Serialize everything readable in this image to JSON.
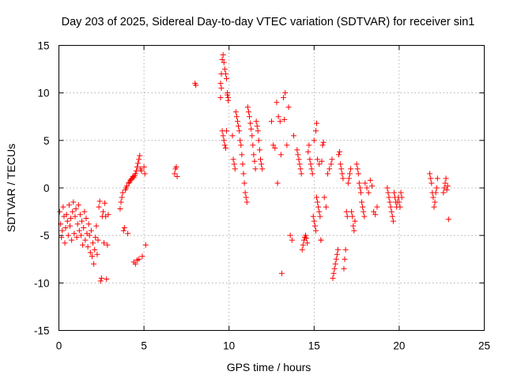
{
  "chart_data": {
    "type": "scatter",
    "title": "Day 203 of 2025, Sidereal Day-to-day VTEC variation (SDTVAR) for receiver sin1",
    "xlabel": "GPS time / hours",
    "ylabel": "SDTVAR / TECUs",
    "xlim": [
      0,
      25
    ],
    "ylim": [
      -15,
      15
    ],
    "xticks": [
      0,
      5,
      10,
      15,
      20,
      25
    ],
    "yticks": [
      -15,
      -10,
      -5,
      0,
      5,
      10,
      15
    ],
    "xtick_labels": [
      "0",
      "5",
      "10",
      "15",
      "20",
      "25"
    ],
    "ytick_labels": [
      "-15",
      "-10",
      "-5",
      "0",
      "5",
      "10",
      "15"
    ],
    "grid": true,
    "marker": "plus",
    "color": "#ff0000",
    "series": [
      {
        "name": "SDTVAR",
        "points": [
          [
            0.05,
            -2.5
          ],
          [
            0.1,
            -3.8
          ],
          [
            0.15,
            -5.2
          ],
          [
            0.2,
            -4.5
          ],
          [
            0.25,
            -2.0
          ],
          [
            0.3,
            -3.0
          ],
          [
            0.35,
            -5.8
          ],
          [
            0.4,
            -4.2
          ],
          [
            0.45,
            -2.8
          ],
          [
            0.5,
            -3.5
          ],
          [
            0.55,
            -5.0
          ],
          [
            0.6,
            -1.8
          ],
          [
            0.65,
            -4.0
          ],
          [
            0.7,
            -3.2
          ],
          [
            0.75,
            -5.5
          ],
          [
            0.8,
            -2.5
          ],
          [
            0.85,
            -1.5
          ],
          [
            0.9,
            -4.8
          ],
          [
            0.95,
            -3.0
          ],
          [
            1.0,
            -2.2
          ],
          [
            1.05,
            -5.2
          ],
          [
            1.1,
            -3.8
          ],
          [
            1.15,
            -1.8
          ],
          [
            1.2,
            -4.5
          ],
          [
            1.25,
            -2.8
          ],
          [
            1.3,
            -5.0
          ],
          [
            1.35,
            -3.5
          ],
          [
            1.4,
            -6.0
          ],
          [
            1.45,
            -4.2
          ],
          [
            1.5,
            -2.5
          ],
          [
            1.55,
            -5.5
          ],
          [
            1.6,
            -3.2
          ],
          [
            1.65,
            -4.8
          ],
          [
            1.7,
            -6.2
          ],
          [
            1.75,
            -3.8
          ],
          [
            1.8,
            -5.0
          ],
          [
            1.85,
            -6.8
          ],
          [
            1.9,
            -4.5
          ],
          [
            1.95,
            -7.2
          ],
          [
            2.0,
            -5.8
          ],
          [
            2.05,
            -8.0
          ],
          [
            2.1,
            -6.5
          ],
          [
            2.15,
            -5.2
          ],
          [
            2.2,
            -4.0
          ],
          [
            2.25,
            -7.0
          ],
          [
            2.3,
            -5.5
          ],
          [
            2.35,
            -2.0
          ],
          [
            2.4,
            -1.4
          ],
          [
            2.45,
            -9.8
          ],
          [
            2.5,
            -9.5
          ],
          [
            2.55,
            -3.0
          ],
          [
            2.6,
            -2.5
          ],
          [
            2.65,
            -5.8
          ],
          [
            2.7,
            -1.6
          ],
          [
            2.75,
            -3.0
          ],
          [
            2.8,
            -9.6
          ],
          [
            2.85,
            -6.0
          ],
          [
            2.9,
            -2.8
          ],
          [
            3.6,
            -2.2
          ],
          [
            3.65,
            -1.5
          ],
          [
            3.7,
            -1.0
          ],
          [
            3.75,
            -0.5
          ],
          [
            3.8,
            -4.5
          ],
          [
            3.85,
            -4.2
          ],
          [
            3.9,
            -0.2
          ],
          [
            3.95,
            0.0
          ],
          [
            4.0,
            0.2
          ],
          [
            4.05,
            -4.8
          ],
          [
            4.1,
            0.5
          ],
          [
            4.15,
            0.6
          ],
          [
            4.2,
            0.8
          ],
          [
            4.25,
            0.9
          ],
          [
            4.3,
            1.0
          ],
          [
            4.35,
            1.2
          ],
          [
            4.4,
            1.1
          ],
          [
            4.45,
            1.3
          ],
          [
            4.5,
            1.5
          ],
          [
            4.55,
            1.8
          ],
          [
            4.6,
            2.2
          ],
          [
            4.65,
            2.6
          ],
          [
            4.7,
            3.0
          ],
          [
            4.75,
            3.4
          ],
          [
            4.8,
            2.0
          ],
          [
            4.85,
            1.8
          ],
          [
            4.4,
            -7.8
          ],
          [
            4.5,
            -8.0
          ],
          [
            4.6,
            -7.6
          ],
          [
            4.7,
            -7.5
          ],
          [
            4.9,
            -7.2
          ],
          [
            5.0,
            2.2
          ],
          [
            5.05,
            1.5
          ],
          [
            5.1,
            -6.0
          ],
          [
            6.8,
            1.5
          ],
          [
            6.85,
            2.0
          ],
          [
            6.9,
            2.2
          ],
          [
            6.95,
            1.2
          ],
          [
            8.0,
            11.0
          ],
          [
            8.05,
            10.8
          ],
          [
            9.5,
            11.0
          ],
          [
            9.55,
            12.0
          ],
          [
            9.6,
            13.5
          ],
          [
            9.65,
            14.0
          ],
          [
            9.7,
            13.2
          ],
          [
            9.75,
            12.5
          ],
          [
            9.8,
            12.0
          ],
          [
            9.85,
            11.5
          ],
          [
            9.9,
            10.0
          ],
          [
            9.95,
            9.5
          ],
          [
            9.5,
            9.5
          ],
          [
            9.55,
            10.5
          ],
          [
            9.6,
            6.0
          ],
          [
            9.65,
            5.5
          ],
          [
            9.7,
            5.0
          ],
          [
            9.75,
            4.5
          ],
          [
            9.8,
            4.2
          ],
          [
            9.85,
            6.0
          ],
          [
            9.9,
            9.8
          ],
          [
            9.95,
            9.2
          ],
          [
            10.2,
            5.5
          ],
          [
            10.25,
            3.0
          ],
          [
            10.3,
            2.5
          ],
          [
            10.35,
            2.0
          ],
          [
            10.4,
            8.0
          ],
          [
            10.45,
            7.5
          ],
          [
            10.5,
            7.0
          ],
          [
            10.55,
            6.5
          ],
          [
            10.6,
            6.0
          ],
          [
            10.65,
            5.0
          ],
          [
            10.7,
            4.5
          ],
          [
            10.75,
            3.5
          ],
          [
            10.8,
            2.5
          ],
          [
            10.85,
            1.5
          ],
          [
            10.9,
            0.5
          ],
          [
            10.95,
            -0.5
          ],
          [
            11.0,
            -1.0
          ],
          [
            11.05,
            -1.5
          ],
          [
            11.1,
            8.5
          ],
          [
            11.15,
            8.0
          ],
          [
            11.2,
            7.5
          ],
          [
            11.25,
            6.8
          ],
          [
            11.3,
            6.2
          ],
          [
            11.35,
            5.5
          ],
          [
            11.4,
            4.5
          ],
          [
            11.45,
            3.5
          ],
          [
            11.5,
            2.8
          ],
          [
            11.55,
            2.0
          ],
          [
            11.6,
            7.0
          ],
          [
            11.65,
            6.5
          ],
          [
            11.7,
            6.0
          ],
          [
            11.75,
            5.0
          ],
          [
            11.8,
            4.0
          ],
          [
            11.85,
            3.0
          ],
          [
            11.9,
            2.5
          ],
          [
            11.95,
            2.0
          ],
          [
            12.5,
            7.0
          ],
          [
            12.6,
            4.5
          ],
          [
            12.7,
            4.2
          ],
          [
            12.8,
            9.0
          ],
          [
            12.85,
            0.5
          ],
          [
            12.9,
            7.5
          ],
          [
            13.0,
            7.0
          ],
          [
            13.05,
            3.5
          ],
          [
            13.1,
            -9.0
          ],
          [
            13.2,
            9.5
          ],
          [
            13.25,
            7.2
          ],
          [
            13.3,
            10.0
          ],
          [
            13.4,
            4.5
          ],
          [
            13.5,
            8.5
          ],
          [
            13.6,
            -5.0
          ],
          [
            13.7,
            -5.5
          ],
          [
            13.8,
            5.5
          ],
          [
            14.0,
            4.0
          ],
          [
            14.05,
            3.5
          ],
          [
            14.1,
            3.0
          ],
          [
            14.15,
            2.5
          ],
          [
            14.2,
            2.0
          ],
          [
            14.25,
            1.5
          ],
          [
            14.3,
            -6.5
          ],
          [
            14.35,
            -6.0
          ],
          [
            14.4,
            -5.5
          ],
          [
            14.45,
            -5.2
          ],
          [
            14.5,
            -5.0
          ],
          [
            14.55,
            -5.3
          ],
          [
            14.6,
            -5.8
          ],
          [
            14.65,
            3.8
          ],
          [
            14.7,
            4.5
          ],
          [
            14.75,
            3.0
          ],
          [
            14.8,
            2.5
          ],
          [
            14.85,
            2.0
          ],
          [
            14.9,
            1.5
          ],
          [
            14.95,
            -3.0
          ],
          [
            15.0,
            -3.5
          ],
          [
            15.05,
            -4.0
          ],
          [
            15.1,
            -4.5
          ],
          [
            15.15,
            -1.0
          ],
          [
            15.2,
            -1.5
          ],
          [
            15.25,
            -2.0
          ],
          [
            15.3,
            -2.5
          ],
          [
            15.35,
            -3.0
          ],
          [
            15.4,
            -5.5
          ],
          [
            15.45,
            2.8
          ],
          [
            15.0,
            5.0
          ],
          [
            15.1,
            6.0
          ],
          [
            15.15,
            6.8
          ],
          [
            15.2,
            3.0
          ],
          [
            15.3,
            2.5
          ],
          [
            15.4,
            -5.5
          ],
          [
            15.5,
            4.5
          ],
          [
            15.55,
            4.8
          ],
          [
            15.6,
            -1.0
          ],
          [
            15.7,
            -2.0
          ],
          [
            15.8,
            1.5
          ],
          [
            15.9,
            2.0
          ],
          [
            16.0,
            2.5
          ],
          [
            16.05,
            3.0
          ],
          [
            16.1,
            -9.5
          ],
          [
            16.15,
            -9.0
          ],
          [
            16.2,
            -8.5
          ],
          [
            16.25,
            -8.0
          ],
          [
            16.3,
            -7.5
          ],
          [
            16.35,
            -7.0
          ],
          [
            16.4,
            -6.5
          ],
          [
            16.45,
            3.5
          ],
          [
            16.5,
            3.8
          ],
          [
            16.55,
            2.5
          ],
          [
            16.6,
            2.0
          ],
          [
            16.65,
            1.5
          ],
          [
            16.7,
            1.0
          ],
          [
            16.75,
            -8.5
          ],
          [
            16.8,
            -7.5
          ],
          [
            16.85,
            -6.5
          ],
          [
            16.9,
            -2.5
          ],
          [
            16.95,
            -3.0
          ],
          [
            17.0,
            0.5
          ],
          [
            17.05,
            1.0
          ],
          [
            17.1,
            1.5
          ],
          [
            17.15,
            2.0
          ],
          [
            17.2,
            -2.5
          ],
          [
            17.25,
            -3.0
          ],
          [
            17.3,
            -4.0
          ],
          [
            17.35,
            -4.5
          ],
          [
            17.4,
            -3.5
          ],
          [
            17.5,
            2.5
          ],
          [
            17.55,
            2.0
          ],
          [
            17.6,
            1.5
          ],
          [
            17.65,
            0.5
          ],
          [
            17.7,
            0.0
          ],
          [
            17.75,
            -0.5
          ],
          [
            17.8,
            -1.5
          ],
          [
            17.85,
            -2.0
          ],
          [
            17.9,
            -2.5
          ],
          [
            17.95,
            -3.0
          ],
          [
            18.0,
            0.5
          ],
          [
            18.1,
            0.0
          ],
          [
            18.2,
            -0.5
          ],
          [
            18.3,
            0.8
          ],
          [
            18.4,
            0.2
          ],
          [
            18.5,
            -2.5
          ],
          [
            18.6,
            -2.8
          ],
          [
            18.7,
            -2.0
          ],
          [
            19.3,
            0.0
          ],
          [
            19.35,
            -0.5
          ],
          [
            19.4,
            -1.0
          ],
          [
            19.45,
            -1.5
          ],
          [
            19.5,
            -2.0
          ],
          [
            19.55,
            -2.5
          ],
          [
            19.6,
            -3.0
          ],
          [
            19.65,
            -3.5
          ],
          [
            19.7,
            -0.5
          ],
          [
            19.75,
            -1.0
          ],
          [
            19.8,
            -1.5
          ],
          [
            19.85,
            -2.0
          ],
          [
            19.9,
            -1.5
          ],
          [
            19.95,
            -1.0
          ],
          [
            20.0,
            -1.5
          ],
          [
            20.05,
            -2.0
          ],
          [
            20.1,
            -0.5
          ],
          [
            20.15,
            -1.0
          ],
          [
            21.8,
            1.5
          ],
          [
            21.85,
            1.0
          ],
          [
            21.9,
            0.5
          ],
          [
            21.95,
            -0.5
          ],
          [
            22.0,
            -1.0
          ],
          [
            22.05,
            -2.0
          ],
          [
            22.1,
            -1.5
          ],
          [
            22.15,
            -0.5
          ],
          [
            22.2,
            0.0
          ],
          [
            22.25,
            1.0
          ],
          [
            22.6,
            -0.5
          ],
          [
            22.65,
            0.0
          ],
          [
            22.7,
            0.5
          ],
          [
            22.75,
            1.0
          ],
          [
            22.8,
            -0.2
          ],
          [
            22.85,
            0.2
          ],
          [
            22.9,
            -3.3
          ]
        ]
      }
    ]
  }
}
